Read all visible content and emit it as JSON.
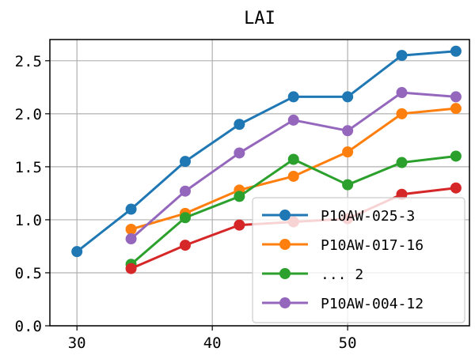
{
  "chart_data": {
    "type": "line",
    "title": "LAI",
    "xlabel": "",
    "ylabel": "",
    "xlim": [
      28,
      59
    ],
    "ylim": [
      0,
      2.7
    ],
    "xticks": [
      30,
      40,
      50
    ],
    "xtick_labels": [
      "30",
      "40",
      "50"
    ],
    "yticks": [
      0,
      0.5,
      1.0,
      1.5,
      2.0,
      2.5
    ],
    "ytick_labels": [
      "0.0",
      "0.5",
      "1.0",
      "1.5",
      "2.0",
      "2.5"
    ],
    "grid": true,
    "legend_position": "lower right",
    "series": [
      {
        "name": "P10AW-025-3",
        "color": "#1f77b4",
        "x": [
          30,
          34,
          38,
          42,
          46,
          50,
          54,
          58
        ],
        "y": [
          0.7,
          1.1,
          1.55,
          1.9,
          2.16,
          2.16,
          2.55,
          2.59
        ]
      },
      {
        "name": "P10AW-017-16",
        "color": "#ff7f0e",
        "x": [
          34,
          38,
          42,
          46,
          50,
          54,
          58
        ],
        "y": [
          0.91,
          1.06,
          1.28,
          1.41,
          1.64,
          2.0,
          2.05
        ]
      },
      {
        "name": "... 2",
        "color": "#2ca02c",
        "x": [
          34,
          38,
          42,
          46,
          50,
          54,
          58
        ],
        "y": [
          0.58,
          1.02,
          1.22,
          1.57,
          1.33,
          1.54,
          1.6
        ]
      },
      {
        "name": "",
        "color": "#d62728",
        "x": [
          34,
          38,
          42,
          46,
          50,
          54,
          58
        ],
        "y": [
          0.54,
          0.76,
          0.95,
          0.98,
          1.01,
          1.24,
          1.3
        ]
      },
      {
        "name": "P10AW-004-12",
        "color": "#9467bd",
        "x": [
          34,
          38,
          42,
          46,
          50,
          54,
          58
        ],
        "y": [
          0.82,
          1.27,
          1.63,
          1.94,
          1.84,
          2.2,
          2.16
        ]
      }
    ],
    "legend_entries": [
      "P10AW-025-3",
      "P10AW-017-16",
      "... 2",
      "P10AW-004-12"
    ]
  }
}
